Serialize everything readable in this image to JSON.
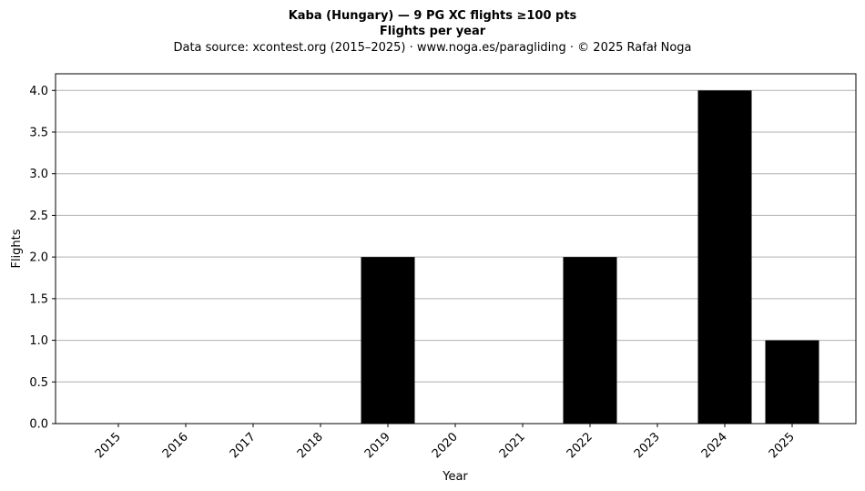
{
  "chart_data": {
    "type": "bar",
    "title": "Kaba (Hungary)  —  9 PG XC flights ≥100 pts",
    "subtitle": "Flights per year",
    "source_note": "Data source: xcontest.org (2015–2025)  ·  www.noga.es/paragliding  ·  © 2025 Rafał Noga",
    "xlabel": "Year",
    "ylabel": "Flights",
    "categories": [
      "2015",
      "2016",
      "2017",
      "2018",
      "2019",
      "2020",
      "2021",
      "2022",
      "2023",
      "2024",
      "2025"
    ],
    "values": [
      0,
      0,
      0,
      0,
      2,
      0,
      0,
      2,
      0,
      4,
      1
    ],
    "ylim": [
      0,
      4.2
    ],
    "yticks": [
      "0.0",
      "0.5",
      "1.0",
      "1.5",
      "2.0",
      "2.5",
      "3.0",
      "3.5",
      "4.0"
    ],
    "grid": "y",
    "bar_color": "#000000",
    "grid_color": "#b0b0b0"
  }
}
